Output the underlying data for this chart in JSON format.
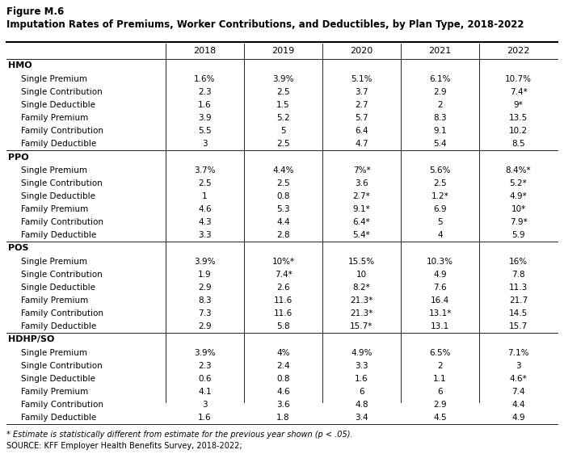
{
  "figure_label": "Figure M.6",
  "title": "Imputation Rates of Premiums, Worker Contributions, and Deductibles, by Plan Type, 2018-2022",
  "sections": [
    {
      "header": "HMO",
      "rows": [
        [
          "Single Premium",
          "1.6%",
          "3.9%",
          "5.1%",
          "6.1%",
          "10.7%"
        ],
        [
          "Single Contribution",
          "2.3",
          "2.5",
          "3.7",
          "2.9",
          "7.4*"
        ],
        [
          "Single Deductible",
          "1.6",
          "1.5",
          "2.7",
          "2",
          "9*"
        ],
        [
          "Family Premium",
          "3.9",
          "5.2",
          "5.7",
          "8.3",
          "13.5"
        ],
        [
          "Family Contribution",
          "5.5",
          "5",
          "6.4",
          "9.1",
          "10.2"
        ],
        [
          "Family Deductible",
          "3",
          "2.5",
          "4.7",
          "5.4",
          "8.5"
        ]
      ]
    },
    {
      "header": "PPO",
      "rows": [
        [
          "Single Premium",
          "3.7%",
          "4.4%",
          "7%*",
          "5.6%",
          "8.4%*"
        ],
        [
          "Single Contribution",
          "2.5",
          "2.5",
          "3.6",
          "2.5",
          "5.2*"
        ],
        [
          "Single Deductible",
          "1",
          "0.8",
          "2.7*",
          "1.2*",
          "4.9*"
        ],
        [
          "Family Premium",
          "4.6",
          "5.3",
          "9.1*",
          "6.9",
          "10*"
        ],
        [
          "Family Contribution",
          "4.3",
          "4.4",
          "6.4*",
          "5",
          "7.9*"
        ],
        [
          "Family Deductible",
          "3.3",
          "2.8",
          "5.4*",
          "4",
          "5.9"
        ]
      ]
    },
    {
      "header": "POS",
      "rows": [
        [
          "Single Premium",
          "3.9%",
          "10%*",
          "15.5%",
          "10.3%",
          "16%"
        ],
        [
          "Single Contribution",
          "1.9",
          "7.4*",
          "10",
          "4.9",
          "7.8"
        ],
        [
          "Single Deductible",
          "2.9",
          "2.6",
          "8.2*",
          "7.6",
          "11.3"
        ],
        [
          "Family Premium",
          "8.3",
          "11.6",
          "21.3*",
          "16.4",
          "21.7"
        ],
        [
          "Family Contribution",
          "7.3",
          "11.6",
          "21.3*",
          "13.1*",
          "14.5"
        ],
        [
          "Family Deductible",
          "2.9",
          "5.8",
          "15.7*",
          "13.1",
          "15.7"
        ]
      ]
    },
    {
      "header": "HDHP/SO",
      "rows": [
        [
          "Single Premium",
          "3.9%",
          "4%",
          "4.9%",
          "6.5%",
          "7.1%"
        ],
        [
          "Single Contribution",
          "2.3",
          "2.4",
          "3.3",
          "2",
          "3"
        ],
        [
          "Single Deductible",
          "0.6",
          "0.8",
          "1.6",
          "1.1",
          "4.6*"
        ],
        [
          "Family Premium",
          "4.1",
          "4.6",
          "6",
          "6",
          "7.4"
        ],
        [
          "Family Contribution",
          "3",
          "3.6",
          "4.8",
          "2.9",
          "4.4"
        ],
        [
          "Family Deductible",
          "1.6",
          "1.8",
          "3.4",
          "4.5",
          "4.9"
        ]
      ]
    }
  ],
  "col_headers": [
    "2018",
    "2019",
    "2020",
    "2021",
    "2022"
  ],
  "footnote": "* Estimate is statistically different from estimate for the previous year shown (p < .05).",
  "source": "SOURCE: KFF Employer Health Benefits Survey, 2018-2022;"
}
